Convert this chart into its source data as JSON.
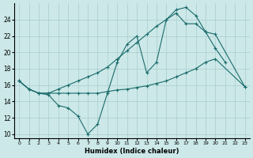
{
  "xlabel": "Humidex (Indice chaleur)",
  "xlim": [
    -0.5,
    23.5
  ],
  "ylim": [
    9.5,
    26.0
  ],
  "yticks": [
    10,
    12,
    14,
    16,
    18,
    20,
    22,
    24
  ],
  "xticks": [
    0,
    1,
    2,
    3,
    4,
    5,
    6,
    7,
    8,
    9,
    10,
    11,
    12,
    13,
    14,
    15,
    16,
    17,
    18,
    19,
    20,
    21,
    22,
    23
  ],
  "bg_color": "#cce8e8",
  "grid_color": "#aacccc",
  "line_color": "#1a6b6b",
  "line1_x": [
    0,
    1,
    2,
    3,
    4,
    5,
    6,
    7,
    8,
    9,
    10,
    11,
    12,
    13,
    14,
    15,
    16,
    17,
    18,
    19,
    20,
    21
  ],
  "line1_y": [
    16.5,
    15.5,
    15.0,
    14.8,
    13.5,
    13.2,
    12.2,
    10.0,
    11.2,
    15.0,
    18.8,
    21.0,
    22.0,
    17.5,
    18.8,
    24.0,
    25.2,
    25.5,
    24.5,
    22.5,
    20.5,
    18.8
  ],
  "line2_x": [
    0,
    1,
    2,
    3,
    4,
    5,
    6,
    7,
    8,
    9,
    10,
    11,
    12,
    13,
    14,
    15,
    16,
    17,
    18,
    19,
    20,
    23
  ],
  "line2_y": [
    16.5,
    15.5,
    15.0,
    15.0,
    15.0,
    15.0,
    15.0,
    15.0,
    15.0,
    15.2,
    15.4,
    15.5,
    15.7,
    15.9,
    16.2,
    16.5,
    17.0,
    17.5,
    18.0,
    18.8,
    19.2,
    15.8
  ],
  "line3_x": [
    0,
    1,
    2,
    3,
    4,
    5,
    6,
    7,
    8,
    9,
    10,
    11,
    12,
    13,
    14,
    15,
    16,
    17,
    18,
    19,
    20,
    23
  ],
  "line3_y": [
    16.5,
    15.5,
    15.0,
    15.0,
    15.5,
    16.0,
    16.5,
    17.0,
    17.5,
    18.2,
    19.2,
    20.2,
    21.2,
    22.2,
    23.2,
    24.0,
    24.8,
    23.5,
    23.5,
    22.5,
    22.2,
    15.8
  ]
}
